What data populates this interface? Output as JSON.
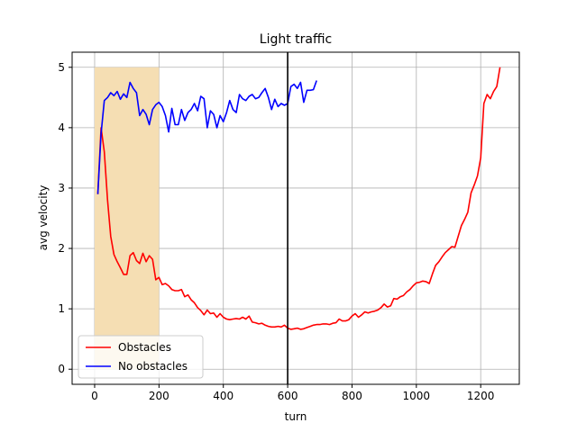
{
  "chart_data": {
    "type": "line",
    "title": "Light traffic",
    "xlabel": "turn",
    "ylabel": "avg velocity",
    "xlim": [
      -70,
      1320
    ],
    "ylim": [
      -0.25,
      5.25
    ],
    "xticks": [
      0,
      200,
      400,
      600,
      800,
      1000,
      1200
    ],
    "yticks": [
      0,
      1,
      2,
      3,
      4,
      5
    ],
    "grid": true,
    "legend_position": "lower-left",
    "shaded_region": {
      "x0": 0,
      "x1": 200,
      "y0": 0,
      "y1": 5,
      "color": "#f5deb3"
    },
    "vertical_line": {
      "x": 600,
      "color": "#000000"
    },
    "series": [
      {
        "name": "Obstacles",
        "color": "#ff0000",
        "x": [
          10,
          20,
          30,
          40,
          50,
          60,
          70,
          80,
          90,
          100,
          110,
          120,
          130,
          140,
          150,
          160,
          170,
          180,
          190,
          200,
          210,
          220,
          230,
          240,
          250,
          260,
          270,
          280,
          290,
          300,
          310,
          320,
          330,
          340,
          350,
          360,
          370,
          380,
          390,
          400,
          410,
          420,
          430,
          440,
          450,
          460,
          470,
          480,
          490,
          500,
          510,
          520,
          530,
          540,
          550,
          560,
          570,
          580,
          590,
          600,
          610,
          620,
          630,
          640,
          650,
          660,
          670,
          680,
          690,
          700,
          710,
          720,
          730,
          740,
          750,
          760,
          770,
          780,
          790,
          800,
          810,
          820,
          830,
          840,
          850,
          860,
          870,
          880,
          890,
          900,
          910,
          920,
          930,
          940,
          950,
          960,
          970,
          980,
          990,
          1000,
          1010,
          1020,
          1030,
          1040,
          1050,
          1060,
          1070,
          1080,
          1090,
          1100,
          1110,
          1120,
          1130,
          1140,
          1150,
          1160,
          1170,
          1180,
          1190,
          1200,
          1210,
          1220,
          1230,
          1240,
          1250,
          1260
        ],
        "y": [
          2.9,
          4.0,
          3.6,
          2.8,
          2.2,
          1.9,
          1.78,
          1.68,
          1.57,
          1.57,
          1.88,
          1.93,
          1.8,
          1.75,
          1.92,
          1.78,
          1.88,
          1.82,
          1.48,
          1.52,
          1.4,
          1.42,
          1.38,
          1.32,
          1.3,
          1.3,
          1.32,
          1.2,
          1.23,
          1.15,
          1.1,
          1.02,
          0.97,
          0.9,
          0.98,
          0.92,
          0.93,
          0.86,
          0.92,
          0.86,
          0.83,
          0.82,
          0.83,
          0.84,
          0.83,
          0.86,
          0.83,
          0.88,
          0.78,
          0.77,
          0.75,
          0.76,
          0.73,
          0.71,
          0.7,
          0.7,
          0.71,
          0.7,
          0.73,
          0.68,
          0.66,
          0.67,
          0.68,
          0.66,
          0.67,
          0.69,
          0.71,
          0.73,
          0.74,
          0.74,
          0.75,
          0.75,
          0.74,
          0.76,
          0.77,
          0.83,
          0.8,
          0.8,
          0.82,
          0.88,
          0.92,
          0.86,
          0.9,
          0.95,
          0.93,
          0.95,
          0.96,
          0.98,
          1.02,
          1.08,
          1.03,
          1.05,
          1.17,
          1.16,
          1.2,
          1.22,
          1.28,
          1.32,
          1.38,
          1.43,
          1.44,
          1.46,
          1.45,
          1.42,
          1.58,
          1.72,
          1.78,
          1.86,
          1.93,
          1.98,
          2.03,
          2.02,
          2.2,
          2.38,
          2.48,
          2.6,
          2.92,
          3.05,
          3.2,
          3.5,
          4.4,
          4.55,
          4.48,
          4.6,
          4.68,
          5.0
        ]
      },
      {
        "name": "No obstacles",
        "color": "#0000ff",
        "x": [
          10,
          20,
          30,
          40,
          50,
          60,
          70,
          80,
          90,
          100,
          110,
          120,
          130,
          140,
          150,
          160,
          170,
          180,
          190,
          200,
          210,
          220,
          230,
          240,
          250,
          260,
          270,
          280,
          290,
          300,
          310,
          320,
          330,
          340,
          350,
          360,
          370,
          380,
          390,
          400,
          410,
          420,
          430,
          440,
          450,
          460,
          470,
          480,
          490,
          500,
          510,
          520,
          530,
          540,
          550,
          560,
          570,
          580,
          590,
          600,
          610,
          620,
          630,
          640,
          650,
          660,
          670,
          680,
          690
        ],
        "y": [
          2.9,
          3.9,
          4.45,
          4.5,
          4.58,
          4.53,
          4.6,
          4.47,
          4.56,
          4.5,
          4.75,
          4.65,
          4.58,
          4.2,
          4.3,
          4.22,
          4.05,
          4.3,
          4.38,
          4.42,
          4.35,
          4.2,
          3.93,
          4.32,
          4.05,
          4.05,
          4.3,
          4.12,
          4.25,
          4.3,
          4.4,
          4.28,
          4.52,
          4.48,
          4.0,
          4.28,
          4.22,
          4.0,
          4.2,
          4.1,
          4.25,
          4.45,
          4.3,
          4.25,
          4.55,
          4.48,
          4.45,
          4.52,
          4.55,
          4.48,
          4.5,
          4.58,
          4.65,
          4.5,
          4.3,
          4.47,
          4.35,
          4.4,
          4.37,
          4.4,
          4.68,
          4.72,
          4.65,
          4.75,
          4.42,
          4.62,
          4.62,
          4.63,
          4.78
        ]
      }
    ]
  }
}
